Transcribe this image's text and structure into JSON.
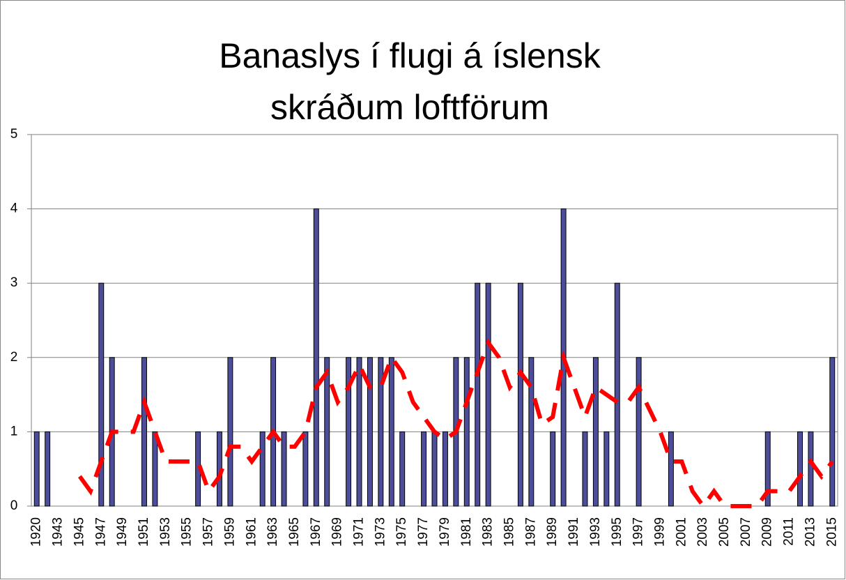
{
  "chart_data": {
    "type": "bar",
    "title": [
      "Banaslys í flugi á íslensk",
      "skráðum loftförum"
    ],
    "categories": [
      "1920",
      null,
      "1943",
      null,
      "1945",
      null,
      "1947",
      null,
      "1949",
      null,
      "1951",
      null,
      "1953",
      null,
      "1955",
      null,
      "1957",
      null,
      "1959",
      null,
      "1961",
      null,
      "1963",
      null,
      "1965",
      null,
      "1967",
      null,
      "1969",
      null,
      "1971",
      null,
      "1973",
      null,
      "1975",
      null,
      "1977",
      null,
      "1979",
      null,
      "1981",
      null,
      "1983",
      null,
      "1985",
      null,
      "1987",
      null,
      "1989",
      null,
      "1991",
      null,
      "1993",
      null,
      "1995",
      null,
      "1997",
      null,
      "1999",
      null,
      "2001",
      null,
      "2003",
      null,
      "2005",
      null,
      "2007",
      null,
      "2009",
      null,
      "2011",
      null,
      "2013",
      null,
      "2015"
    ],
    "series": [
      {
        "type": "bar",
        "color": "#4d4d99",
        "values": [
          1,
          1,
          0,
          0,
          0,
          0,
          3,
          2,
          0,
          0,
          2,
          1,
          0,
          0,
          0,
          1,
          0,
          1,
          2,
          0,
          0,
          1,
          2,
          1,
          0,
          1,
          4,
          2,
          0,
          2,
          2,
          2,
          2,
          2,
          1,
          0,
          1,
          1,
          1,
          2,
          2,
          3,
          3,
          0,
          0,
          3,
          2,
          0,
          1,
          4,
          0,
          1,
          2,
          1,
          3,
          0,
          2,
          0,
          0,
          1,
          0,
          0,
          0,
          0,
          0,
          0,
          0,
          0,
          1,
          0,
          0,
          1,
          1,
          0,
          2
        ]
      },
      {
        "type": "line",
        "color": "#ff0000",
        "dashed": true,
        "values": [
          null,
          null,
          null,
          null,
          0.4,
          0.2,
          0.6,
          1.0,
          1.0,
          1.0,
          1.4,
          1.0,
          0.6,
          0.6,
          0.6,
          0.6,
          0.2,
          0.4,
          0.8,
          0.8,
          0.6,
          0.8,
          1.0,
          0.8,
          0.8,
          1.0,
          1.6,
          1.8,
          1.4,
          1.6,
          1.9,
          1.6,
          1.6,
          2.0,
          1.8,
          1.4,
          1.2,
          1.0,
          0.9,
          1.0,
          1.4,
          1.8,
          2.2,
          2.0,
          1.6,
          1.8,
          1.6,
          1.1,
          1.2,
          2.0,
          1.6,
          1.2,
          1.6,
          1.5,
          1.4,
          1.4,
          1.6,
          1.3,
          1.0,
          0.6,
          0.6,
          0.2,
          0.0,
          0.2,
          0.0,
          0.0,
          0.0,
          0.0,
          0.2,
          0.2,
          0.2,
          0.4,
          0.6,
          0.4,
          0.6
        ]
      }
    ],
    "ylim": [
      0,
      5
    ],
    "yticks": [
      0,
      1,
      2,
      3,
      4,
      5
    ],
    "grid": true
  }
}
